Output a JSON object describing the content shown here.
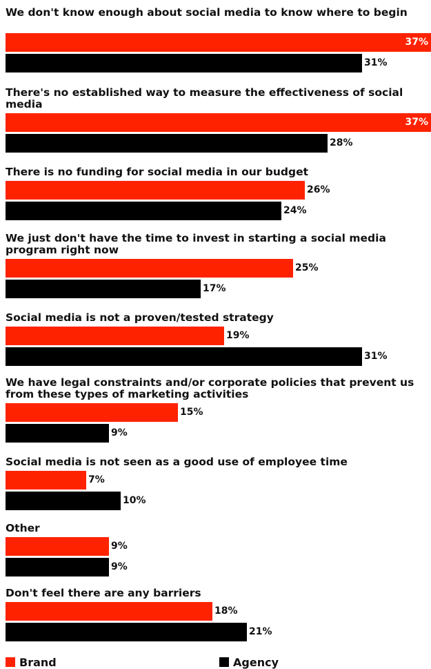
{
  "chart_data": {
    "type": "bar",
    "orientation": "horizontal",
    "categories": [
      "We don't know enough about social media to know where to begin",
      "There's no established way to measure the effectiveness of social media",
      "There is no funding for social media in our budget",
      "We just don't have the time to invest in starting a social media program right now",
      "Social media is not a proven/tested strategy",
      "We have legal constraints and/or corporate policies that prevent us from these types of marketing activities",
      "Social media is not seen as a good use of employee time",
      "Other",
      "Don't feel there are any barriers"
    ],
    "series": [
      {
        "name": "Brand",
        "color": "#ff2200",
        "values": [
          37,
          37,
          26,
          25,
          19,
          15,
          7,
          9,
          18
        ],
        "labels": [
          "37%",
          "37%",
          "26%",
          "25%",
          "19%",
          "15%",
          "7%",
          "9%",
          "18%"
        ]
      },
      {
        "name": "Agency",
        "color": "#000000",
        "values": [
          31,
          28,
          24,
          17,
          31,
          9,
          10,
          9,
          21
        ],
        "labels": [
          "31%",
          "28%",
          "24%",
          "17%",
          "31%",
          "9%",
          "10%",
          "9%",
          "21%"
        ]
      }
    ],
    "xlim": [
      0,
      37
    ],
    "legend_position": "bottom"
  }
}
